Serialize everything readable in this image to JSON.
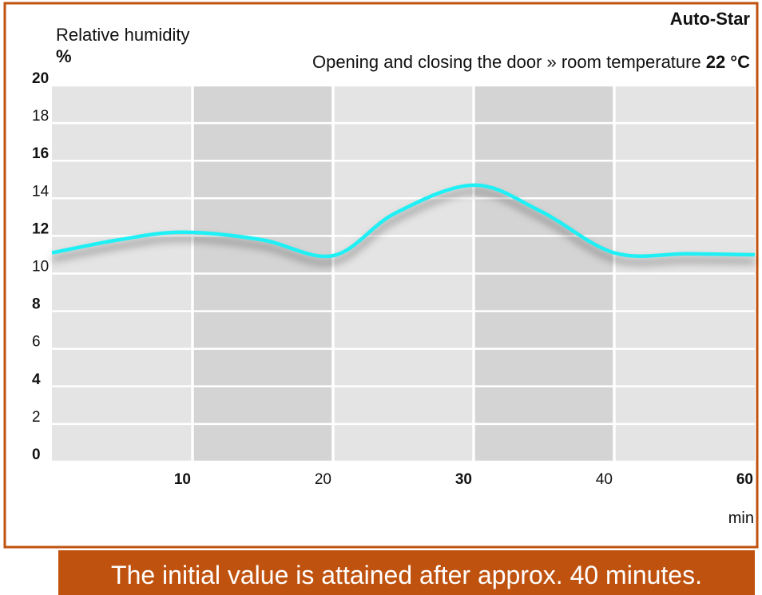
{
  "chart_data": {
    "type": "line",
    "brand": "Auto-Star",
    "subtitle": "Opening and closing the door » room temperature",
    "subtitle_value": "22 °C",
    "y_label": "Relative humidity",
    "y_unit": "%",
    "x_label": "min",
    "caption": "The initial value is attained after approx. 40 minutes.",
    "xlim": [
      0,
      60
    ],
    "xticks": [
      10,
      20,
      30,
      40,
      60
    ],
    "ylim": [
      0,
      20
    ],
    "yticks": [
      20,
      18,
      16,
      14,
      12,
      10,
      8,
      6,
      4,
      2,
      0
    ],
    "grid": true,
    "series": [
      {
        "name": "Relative humidity",
        "color": "#1ef0f5",
        "x": [
          0,
          4.8,
          9.3,
          14.9,
          20,
          24.4,
          30,
          34.8,
          40,
          50.4,
          60
        ],
        "values": [
          11.1,
          11.8,
          12.2,
          11.8,
          10.95,
          13.2,
          14.7,
          13.3,
          11.1,
          11.05,
          11.0
        ]
      }
    ]
  }
}
